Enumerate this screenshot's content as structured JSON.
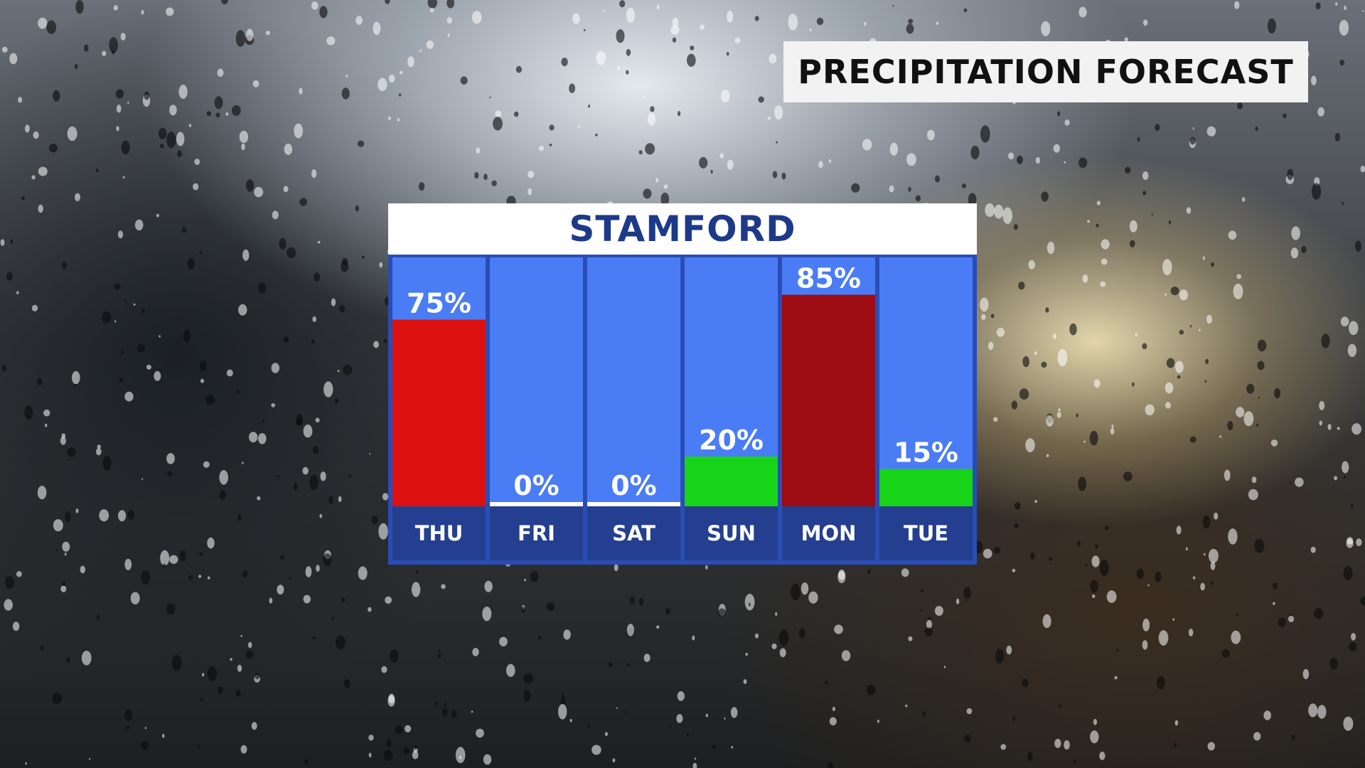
{
  "header": {
    "title": "PRECIPITATION FORECAST"
  },
  "panel": {
    "city": "STAMFORD"
  },
  "colors": {
    "column_bg": "#4a7cf5",
    "day_band": "#243f8f",
    "frame": "#2a4db5",
    "high": "#dd1010",
    "very_high": "#9c0c12",
    "low": "#18d418",
    "none": "#ffffff"
  },
  "chart_data": {
    "type": "bar",
    "categories": [
      "THU",
      "FRI",
      "SAT",
      "SUN",
      "MON",
      "TUE"
    ],
    "values": [
      75,
      0,
      0,
      20,
      85,
      15
    ],
    "value_labels": [
      "75%",
      "0%",
      "0%",
      "20%",
      "85%",
      "15%"
    ],
    "bar_colors": [
      "#dd1010",
      "#ffffff",
      "#ffffff",
      "#18d418",
      "#9c0c12",
      "#18d418"
    ],
    "title": "STAMFORD",
    "ylim": [
      0,
      100
    ],
    "grid": false
  }
}
